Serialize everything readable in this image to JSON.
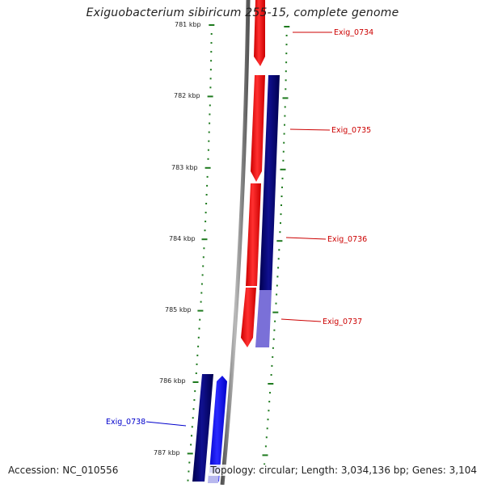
{
  "title": "Exiguobacterium sibiricum 255-15, complete genome",
  "footer": {
    "accession": "Accession: NC_010556",
    "summary": "Topology: circular; Length: 3,034,136 bp; Genes: 3,104"
  },
  "colors": {
    "tick_green": "#1e7a1e",
    "backbone_gray": "#888888",
    "forward_red": "#ff0000",
    "reverse_navy": "#000080",
    "reverse_blue": "#0000ff",
    "label_red": "#cc0000",
    "label_blue": "#0000cc"
  },
  "scale": {
    "unit": "kbp",
    "ticks": [
      "781 kbp",
      "782 kbp",
      "783 kbp",
      "784 kbp",
      "785 kbp",
      "786 kbp",
      "787 kbp"
    ]
  },
  "genes": [
    {
      "label": "Exig_0734",
      "strand": "forward"
    },
    {
      "label": "Exig_0735",
      "strand": "forward"
    },
    {
      "label": "Exig_0736",
      "strand": "forward"
    },
    {
      "label": "Exig_0737",
      "strand": "forward"
    },
    {
      "label": "Exig_0738",
      "strand": "reverse"
    }
  ]
}
